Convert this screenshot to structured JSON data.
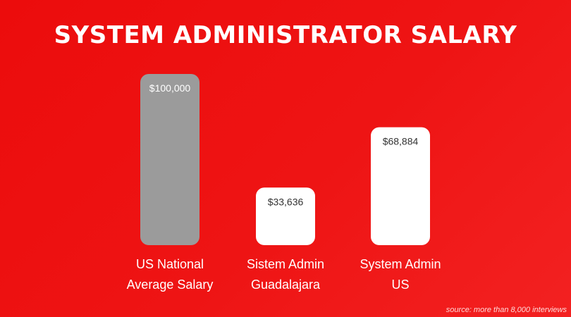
{
  "chart_data": {
    "type": "bar",
    "title": "SYSTEM ADMINISTRATOR SALARY",
    "categories": [
      [
        "US National",
        "Average Salary"
      ],
      [
        "Sistem Admin",
        "Guadalajara"
      ],
      [
        "System Admin",
        "US"
      ]
    ],
    "values": [
      100000,
      33636,
      68884
    ],
    "value_labels": [
      "$100,000",
      "$33,636",
      "$68,884"
    ],
    "bar_colors": [
      "#9b9b9b",
      "#ffffff",
      "#ffffff"
    ],
    "value_label_colors": [
      "#ffffff",
      "#333333",
      "#333333"
    ],
    "ylim": [
      0,
      100000
    ],
    "grid": false,
    "xlabel": "",
    "ylabel": ""
  },
  "footer": {
    "source": "source: more than 8,000 interviews"
  }
}
